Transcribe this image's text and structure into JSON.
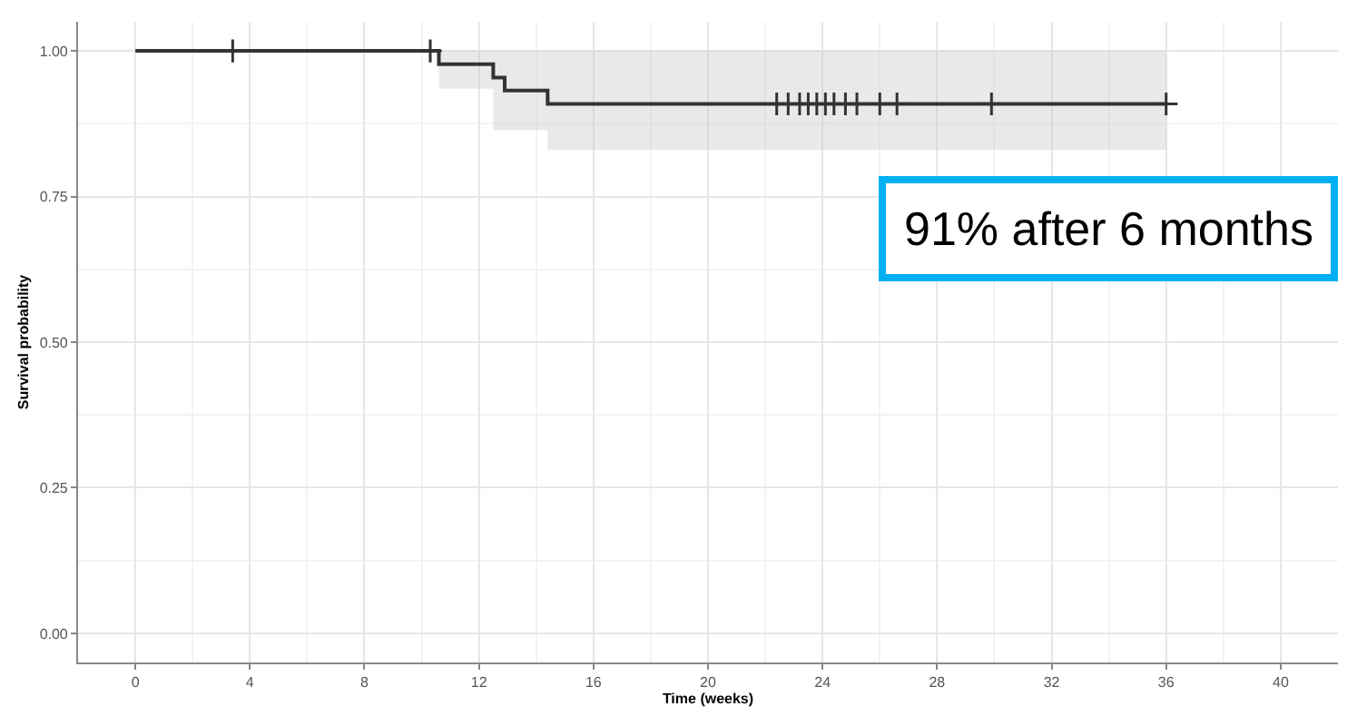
{
  "chart_data": {
    "type": "step",
    "xlabel": "Time (weeks)",
    "ylabel": "Survival probability",
    "xlim": [
      -2,
      42
    ],
    "xticks": [
      0,
      4,
      8,
      12,
      16,
      20,
      24,
      28,
      32,
      36,
      40
    ],
    "ylim": [
      -0.05,
      1.05
    ],
    "yticks": [
      {
        "value": 0,
        "label": "0.00"
      },
      {
        "value": 0.25,
        "label": "0.25"
      },
      {
        "value": 0.5,
        "label": "0.50"
      },
      {
        "value": 0.75,
        "label": "0.75"
      },
      {
        "value": 1,
        "label": "1.00"
      }
    ],
    "grid": true,
    "series": [
      {
        "color": "#333333",
        "x": [
          0,
          10.6,
          12.5,
          12.9,
          14.4,
          36
        ],
        "values": [
          1,
          0.977,
          0.954,
          0.932,
          0.909,
          0.909
        ],
        "lower": [
          null,
          0.935,
          0.864,
          0.864,
          0.83,
          0.83
        ],
        "upper": [
          null,
          1,
          1,
          1,
          1,
          1
        ]
      },
      {
        "type": "scatter",
        "marker": "cross",
        "color": "#333333",
        "x": [
          3.4,
          10.3,
          22.4,
          22.8,
          23.2,
          23.5,
          23.8,
          24.1,
          24.4,
          24.8,
          25.2,
          26.0,
          26.6,
          29.9,
          36.0
        ],
        "values": [
          1,
          1,
          0.909,
          0.909,
          0.909,
          0.909,
          0.909,
          0.909,
          0.909,
          0.909,
          0.909,
          0.909,
          0.909,
          0.909,
          0.909
        ]
      }
    ],
    "annotations": [
      "91% after 6 months"
    ]
  }
}
